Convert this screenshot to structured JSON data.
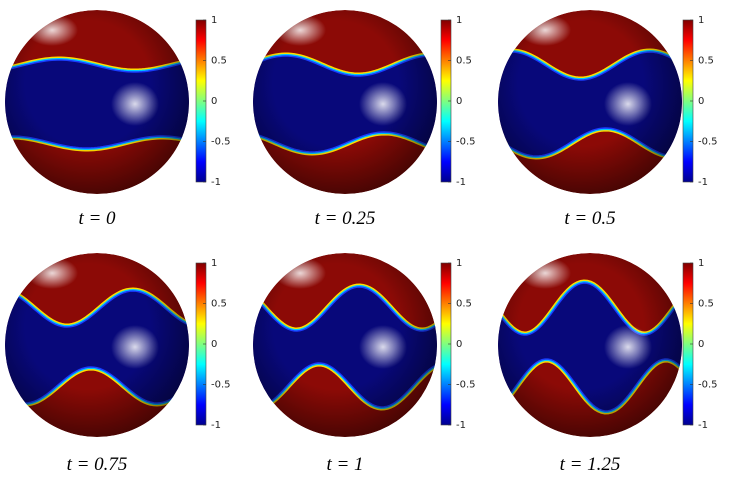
{
  "panels": [
    {
      "caption": "t = 0"
    },
    {
      "caption": "t = 0.25"
    },
    {
      "caption": "t = 0.5"
    },
    {
      "caption": "t = 0.75"
    },
    {
      "caption": "t = 1"
    },
    {
      "caption": "t = 1.25"
    }
  ],
  "colorbar": {
    "lim": [
      -1,
      1
    ],
    "ticks": [
      1,
      0.5,
      0,
      -0.5,
      -1
    ]
  }
}
